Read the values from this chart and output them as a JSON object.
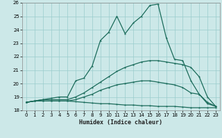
{
  "xlabel": "Humidex (Indice chaleur)",
  "bg_color": "#cce8e8",
  "grid_color": "#99cccc",
  "line_color": "#1a6b5a",
  "xlim": [
    -0.5,
    23.5
  ],
  "ylim": [
    18,
    26
  ],
  "xticks": [
    0,
    1,
    2,
    3,
    4,
    5,
    6,
    7,
    8,
    9,
    10,
    11,
    12,
    13,
    14,
    15,
    16,
    17,
    18,
    19,
    20,
    21,
    22,
    23
  ],
  "yticks": [
    18,
    19,
    20,
    21,
    22,
    23,
    24,
    25,
    26
  ],
  "line1_x": [
    0,
    1,
    2,
    3,
    4,
    5,
    6,
    7,
    8,
    9,
    10,
    11,
    12,
    13,
    14,
    15,
    16,
    17,
    18,
    19,
    20,
    21,
    22,
    23
  ],
  "line1_y": [
    18.6,
    18.7,
    18.7,
    18.7,
    18.7,
    18.7,
    18.65,
    18.6,
    18.55,
    18.5,
    18.5,
    18.45,
    18.4,
    18.4,
    18.35,
    18.35,
    18.3,
    18.3,
    18.3,
    18.25,
    18.2,
    18.2,
    18.2,
    18.2
  ],
  "line2_x": [
    0,
    1,
    2,
    3,
    4,
    5,
    6,
    7,
    8,
    9,
    10,
    11,
    12,
    13,
    14,
    15,
    16,
    17,
    18,
    19,
    20,
    21,
    22,
    23
  ],
  "line2_y": [
    18.6,
    18.7,
    18.7,
    18.7,
    18.7,
    18.7,
    18.8,
    19.0,
    19.2,
    19.5,
    19.7,
    19.9,
    20.0,
    20.1,
    20.2,
    20.2,
    20.1,
    20.0,
    19.9,
    19.7,
    19.3,
    19.2,
    18.6,
    18.3
  ],
  "line3_x": [
    0,
    1,
    2,
    3,
    4,
    5,
    6,
    7,
    8,
    9,
    10,
    11,
    12,
    13,
    14,
    15,
    16,
    17,
    18,
    19,
    20,
    21,
    22,
    23
  ],
  "line3_y": [
    18.6,
    18.7,
    18.8,
    18.8,
    18.8,
    18.8,
    19.0,
    19.3,
    19.7,
    20.1,
    20.5,
    20.9,
    21.2,
    21.4,
    21.6,
    21.7,
    21.7,
    21.6,
    21.5,
    21.4,
    21.2,
    20.5,
    19.0,
    18.3
  ],
  "line4_x": [
    0,
    1,
    2,
    3,
    4,
    5,
    6,
    7,
    8,
    9,
    10,
    11,
    12,
    13,
    14,
    15,
    16,
    17,
    18,
    19,
    20,
    21,
    22,
    23
  ],
  "line4_y": [
    18.6,
    18.7,
    18.8,
    18.9,
    19.0,
    19.0,
    20.2,
    20.4,
    21.3,
    23.2,
    23.8,
    25.0,
    23.7,
    24.5,
    25.0,
    25.8,
    25.9,
    23.4,
    21.8,
    21.7,
    20.2,
    19.2,
    18.5,
    18.3
  ]
}
